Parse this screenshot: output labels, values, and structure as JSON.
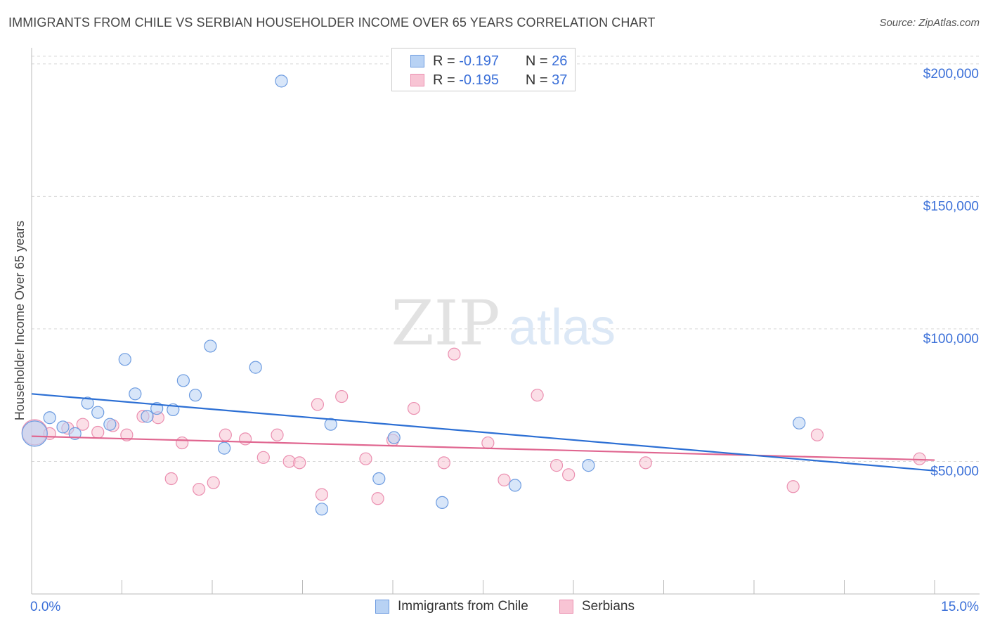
{
  "title": "IMMIGRANTS FROM CHILE VS SERBIAN HOUSEHOLDER INCOME OVER 65 YEARS CORRELATION CHART",
  "source": "Source: ZipAtlas.com",
  "watermark": {
    "zip": "ZIP",
    "atlas": "atlas"
  },
  "legend": {
    "series1": {
      "r_label": "R =",
      "r_value": "-0.197",
      "n_label": "N =",
      "n_value": "26"
    },
    "series2": {
      "r_label": "R =",
      "r_value": "-0.195",
      "n_label": "N =",
      "n_value": "37"
    }
  },
  "colors": {
    "blue_fill": "#b8d2f4",
    "blue_stroke": "#6c9be0",
    "blue_line": "#2c6fd4",
    "pink_fill": "#f8c4d4",
    "pink_stroke": "#eb8fb0",
    "pink_line": "#e06690",
    "grid": "#d8d8d8",
    "tick_label": "#3a6fd8"
  },
  "chart_data": {
    "type": "scatter",
    "title": "IMMIGRANTS FROM CHILE VS SERBIAN HOUSEHOLDER INCOME OVER 65 YEARS CORRELATION CHART",
    "xlabel": "",
    "ylabel": "Householder Income Over 65 years",
    "xlim": [
      0,
      15
    ],
    "ylim": [
      0,
      205000
    ],
    "x_tick_labels": [
      "0.0%",
      "15.0%"
    ],
    "y_ticks": [
      50000,
      100000,
      150000,
      200000
    ],
    "y_tick_labels": [
      "$50,000",
      "$100,000",
      "$150,000",
      "$200,000"
    ],
    "series": [
      {
        "name": "Immigrants from Chile",
        "r": -0.197,
        "n": 26,
        "trend": {
          "x": [
            0,
            15
          ],
          "y": [
            75500,
            46500
          ]
        },
        "points": [
          {
            "x": 0.05,
            "y": 60500,
            "big": true
          },
          {
            "x": 0.3,
            "y": 66500
          },
          {
            "x": 0.52,
            "y": 63000
          },
          {
            "x": 0.72,
            "y": 60500
          },
          {
            "x": 0.93,
            "y": 72000
          },
          {
            "x": 1.1,
            "y": 68500
          },
          {
            "x": 1.3,
            "y": 64000
          },
          {
            "x": 1.55,
            "y": 88500
          },
          {
            "x": 1.72,
            "y": 75500
          },
          {
            "x": 1.92,
            "y": 67000
          },
          {
            "x": 2.08,
            "y": 70000
          },
          {
            "x": 2.35,
            "y": 69500
          },
          {
            "x": 2.52,
            "y": 80500
          },
          {
            "x": 2.72,
            "y": 75000
          },
          {
            "x": 2.97,
            "y": 93500
          },
          {
            "x": 3.2,
            "y": 55000
          },
          {
            "x": 3.72,
            "y": 85500
          },
          {
            "x": 4.15,
            "y": 193500
          },
          {
            "x": 4.82,
            "y": 32000
          },
          {
            "x": 4.97,
            "y": 64000
          },
          {
            "x": 5.77,
            "y": 43500
          },
          {
            "x": 6.02,
            "y": 59000
          },
          {
            "x": 6.82,
            "y": 34500
          },
          {
            "x": 8.03,
            "y": 41000
          },
          {
            "x": 9.25,
            "y": 48500
          },
          {
            "x": 12.75,
            "y": 64500
          }
        ]
      },
      {
        "name": "Serbians",
        "r": -0.195,
        "n": 37,
        "trend": {
          "x": [
            0,
            15
          ],
          "y": [
            59500,
            50500
          ]
        },
        "points": [
          {
            "x": 0.05,
            "y": 61000,
            "big": true
          },
          {
            "x": 0.6,
            "y": 62500
          },
          {
            "x": 0.85,
            "y": 64000
          },
          {
            "x": 1.1,
            "y": 61000
          },
          {
            "x": 1.35,
            "y": 63500
          },
          {
            "x": 1.58,
            "y": 60000
          },
          {
            "x": 1.85,
            "y": 67000
          },
          {
            "x": 2.1,
            "y": 66500
          },
          {
            "x": 2.32,
            "y": 43500
          },
          {
            "x": 2.5,
            "y": 57000
          },
          {
            "x": 2.78,
            "y": 39500
          },
          {
            "x": 3.02,
            "y": 42000
          },
          {
            "x": 3.22,
            "y": 60000
          },
          {
            "x": 3.55,
            "y": 58500
          },
          {
            "x": 3.85,
            "y": 51500
          },
          {
            "x": 4.08,
            "y": 60000
          },
          {
            "x": 4.28,
            "y": 50000
          },
          {
            "x": 4.45,
            "y": 49500
          },
          {
            "x": 4.75,
            "y": 71500
          },
          {
            "x": 4.82,
            "y": 37500
          },
          {
            "x": 5.15,
            "y": 74500
          },
          {
            "x": 5.55,
            "y": 51000
          },
          {
            "x": 5.75,
            "y": 36000
          },
          {
            "x": 6.0,
            "y": 58000
          },
          {
            "x": 6.35,
            "y": 70000
          },
          {
            "x": 6.85,
            "y": 49500
          },
          {
            "x": 7.02,
            "y": 90500
          },
          {
            "x": 7.58,
            "y": 57000
          },
          {
            "x": 7.85,
            "y": 43000
          },
          {
            "x": 8.4,
            "y": 75000
          },
          {
            "x": 8.72,
            "y": 48500
          },
          {
            "x": 8.92,
            "y": 45000
          },
          {
            "x": 10.2,
            "y": 49500
          },
          {
            "x": 12.65,
            "y": 40500
          },
          {
            "x": 13.05,
            "y": 60000
          },
          {
            "x": 14.75,
            "y": 51000
          },
          {
            "x": 0.3,
            "y": 60500
          }
        ]
      }
    ]
  }
}
